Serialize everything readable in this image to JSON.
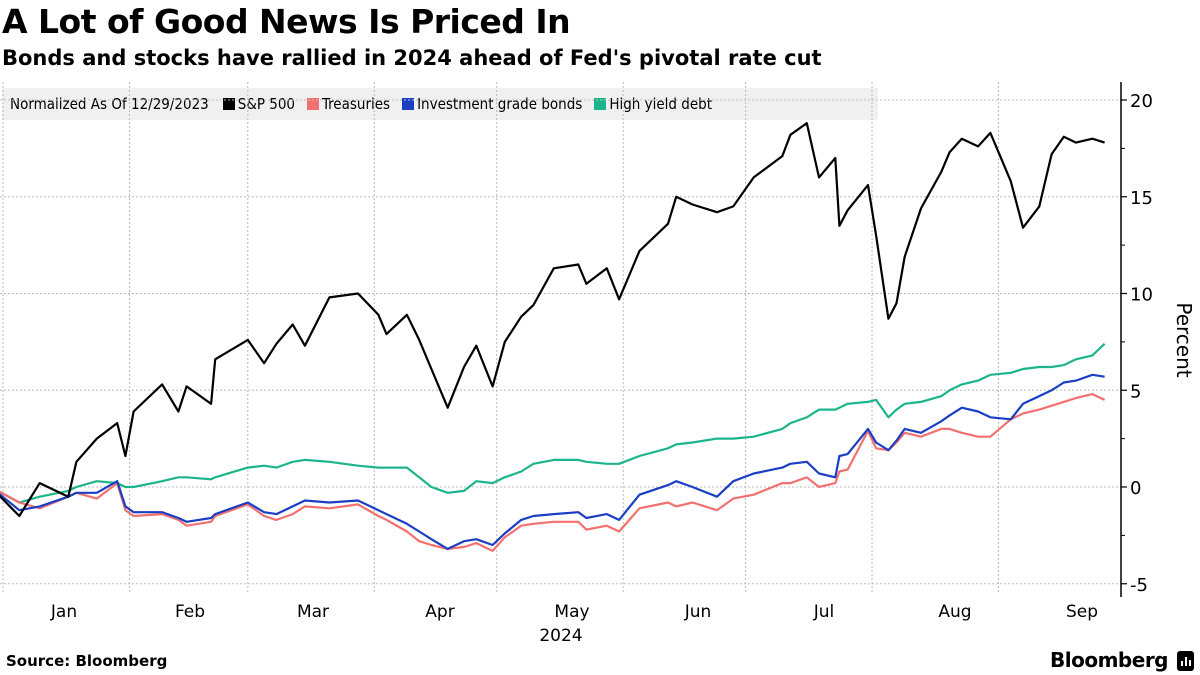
{
  "title": "A Lot of Good News Is Priced In",
  "subtitle": "Bonds and stocks have rallied in 2024 ahead of Fed's pivotal rate cut",
  "legend": {
    "note": "Normalized As Of 12/29/2023",
    "items": [
      {
        "label": "S&P 500",
        "color": "#000000"
      },
      {
        "label": "Treasuries",
        "color": "#f2716f"
      },
      {
        "label": "Investment grade bonds",
        "color": "#1a3fc4"
      },
      {
        "label": "High yield debt",
        "color": "#1cb58b"
      }
    ]
  },
  "footer": {
    "source": "Source: Bloomberg",
    "brand": "Bloomberg"
  },
  "chart_data": {
    "type": "line",
    "title": "A Lot of Good News Is Priced In",
    "subtitle": "Bonds and stocks have rallied in 2024 ahead of Fed's pivotal rate cut",
    "xlabel": "2024",
    "ylabel": "Percent",
    "ylim": [
      -5.5,
      21
    ],
    "yticks": [
      -5,
      0,
      5,
      10,
      15,
      20
    ],
    "xticks": [
      "Jan",
      "Feb",
      "Mar",
      "Apr",
      "May",
      "Jun",
      "Jul",
      "Aug",
      "Sep"
    ],
    "x_unit": "days since 2023-12-29",
    "grid": true,
    "legend_position": "top-left",
    "x": [
      0,
      7,
      12,
      19,
      21,
      26,
      31,
      33,
      35,
      42,
      46,
      48,
      54,
      55,
      63,
      67,
      70,
      74,
      77,
      83,
      90,
      95,
      97,
      102,
      105,
      108,
      112,
      116,
      119,
      123,
      126,
      130,
      133,
      138,
      144,
      146,
      151,
      154,
      159,
      166,
      168,
      172,
      178,
      182,
      187,
      194,
      196,
      200,
      203,
      207,
      208,
      210,
      215,
      217,
      220,
      222,
      224,
      228,
      233,
      235,
      238,
      242,
      245,
      250,
      253,
      257,
      260,
      263,
      266,
      270,
      273
    ],
    "series": [
      {
        "name": "S&P 500",
        "color": "#000000",
        "values": [
          0,
          -1.5,
          0.2,
          -0.5,
          1.3,
          2.5,
          3.3,
          1.6,
          3.9,
          5.3,
          3.9,
          5.2,
          4.3,
          6.6,
          7.6,
          6.4,
          7.4,
          8.4,
          7.3,
          9.8,
          10.0,
          8.9,
          7.9,
          8.9,
          7.6,
          6.1,
          4.1,
          6.2,
          7.3,
          5.2,
          7.5,
          8.8,
          9.4,
          11.3,
          11.5,
          10.5,
          11.3,
          9.7,
          12.2,
          13.6,
          15.0,
          14.6,
          14.2,
          14.5,
          16.0,
          17.1,
          18.2,
          18.8,
          16.0,
          17.0,
          13.5,
          14.3,
          15.6,
          13.0,
          8.7,
          9.5,
          11.9,
          14.4,
          16.3,
          17.3,
          18.0,
          17.6,
          18.3,
          15.8,
          13.4,
          14.5,
          17.2,
          18.1,
          17.8,
          18.0,
          17.8
        ]
      },
      {
        "name": "Treasuries",
        "color": "#f2716f",
        "values": [
          0,
          -0.8,
          -1.1,
          -0.5,
          -0.3,
          -0.6,
          0.2,
          -1.2,
          -1.5,
          -1.4,
          -1.7,
          -2.0,
          -1.8,
          -1.5,
          -0.9,
          -1.5,
          -1.7,
          -1.4,
          -1.0,
          -1.1,
          -0.9,
          -1.5,
          -1.7,
          -2.3,
          -2.8,
          -3.0,
          -3.2,
          -3.1,
          -2.9,
          -3.3,
          -2.6,
          -2.0,
          -1.9,
          -1.8,
          -1.8,
          -2.2,
          -2.0,
          -2.3,
          -1.1,
          -0.8,
          -1.0,
          -0.8,
          -1.2,
          -0.6,
          -0.4,
          0.2,
          0.2,
          0.5,
          0.0,
          0.2,
          0.8,
          0.9,
          2.9,
          2.0,
          1.9,
          2.3,
          2.8,
          2.6,
          3.0,
          3.0,
          2.8,
          2.6,
          2.6,
          3.5,
          3.8,
          4.0,
          4.2,
          4.4,
          4.6,
          4.8,
          4.5
        ]
      },
      {
        "name": "Investment grade bonds",
        "color": "#1a3fc4",
        "values": [
          0,
          -1.2,
          -1.0,
          -0.5,
          -0.3,
          -0.3,
          0.3,
          -1.0,
          -1.3,
          -1.3,
          -1.6,
          -1.8,
          -1.6,
          -1.4,
          -0.8,
          -1.3,
          -1.4,
          -1.0,
          -0.7,
          -0.8,
          -0.7,
          -1.2,
          -1.4,
          -1.9,
          -2.3,
          -2.7,
          -3.2,
          -2.8,
          -2.7,
          -3.0,
          -2.4,
          -1.7,
          -1.5,
          -1.4,
          -1.3,
          -1.6,
          -1.4,
          -1.7,
          -0.4,
          0.1,
          0.3,
          0.0,
          -0.5,
          0.3,
          0.7,
          1.0,
          1.2,
          1.3,
          0.7,
          0.5,
          1.6,
          1.7,
          3.0,
          2.3,
          1.9,
          2.4,
          3.0,
          2.8,
          3.4,
          3.7,
          4.1,
          3.9,
          3.6,
          3.5,
          4.3,
          4.7,
          5.0,
          5.4,
          5.5,
          5.8,
          5.7
        ]
      },
      {
        "name": "High yield debt",
        "color": "#1cb58b",
        "values": [
          0,
          -0.8,
          -0.5,
          -0.2,
          0.0,
          0.3,
          0.2,
          0.0,
          0.0,
          0.3,
          0.5,
          0.5,
          0.4,
          0.5,
          1.0,
          1.1,
          1.0,
          1.3,
          1.4,
          1.3,
          1.1,
          1.0,
          1.0,
          1.0,
          0.5,
          0.0,
          -0.3,
          -0.2,
          0.3,
          0.2,
          0.5,
          0.8,
          1.2,
          1.4,
          1.4,
          1.3,
          1.2,
          1.2,
          1.6,
          2.0,
          2.2,
          2.3,
          2.5,
          2.5,
          2.6,
          3.0,
          3.3,
          3.6,
          4.0,
          4.0,
          4.1,
          4.3,
          4.4,
          4.5,
          3.6,
          4.0,
          4.3,
          4.4,
          4.7,
          5.0,
          5.3,
          5.5,
          5.8,
          5.9,
          6.1,
          6.2,
          6.2,
          6.3,
          6.6,
          6.8,
          7.4
        ]
      }
    ]
  }
}
